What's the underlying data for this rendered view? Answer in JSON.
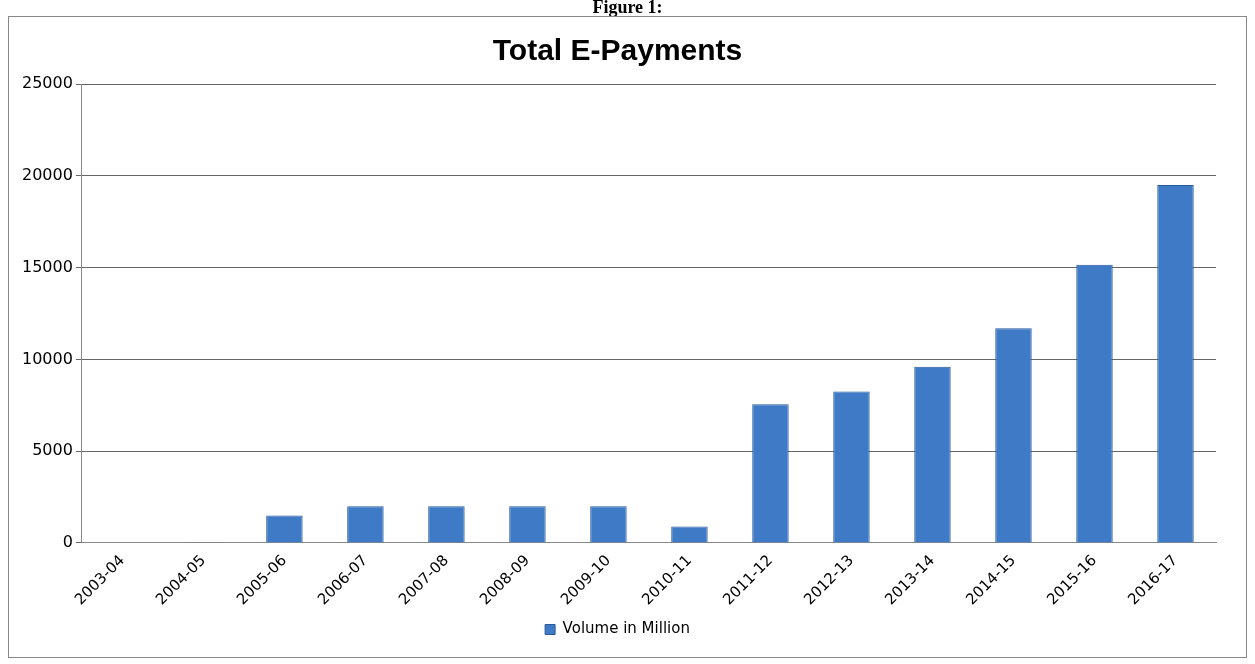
{
  "chart_data": {
    "type": "bar",
    "title": "Total E-Payments",
    "annotations": [
      "Figure 1:"
    ],
    "categories": [
      "2003-04",
      "2004-05",
      "2005-06",
      "2006-07",
      "2007-08",
      "2008-09",
      "2009-10",
      "2010-11",
      "2011-12",
      "2012-13",
      "2013-14",
      "2014-15",
      "2015-16",
      "2016-17"
    ],
    "series": [
      {
        "name": "Volume in Million",
        "color": "#3f7ac6",
        "values": [
          30,
          40,
          1500,
          2000,
          2000,
          2000,
          2000,
          900,
          7550,
          8250,
          9600,
          11700,
          15150,
          19500
        ]
      }
    ],
    "ylim": [
      0,
      25000
    ],
    "yticks": [
      0,
      5000,
      10000,
      15000,
      20000,
      25000
    ],
    "grid": "y",
    "legend": "bottom"
  }
}
